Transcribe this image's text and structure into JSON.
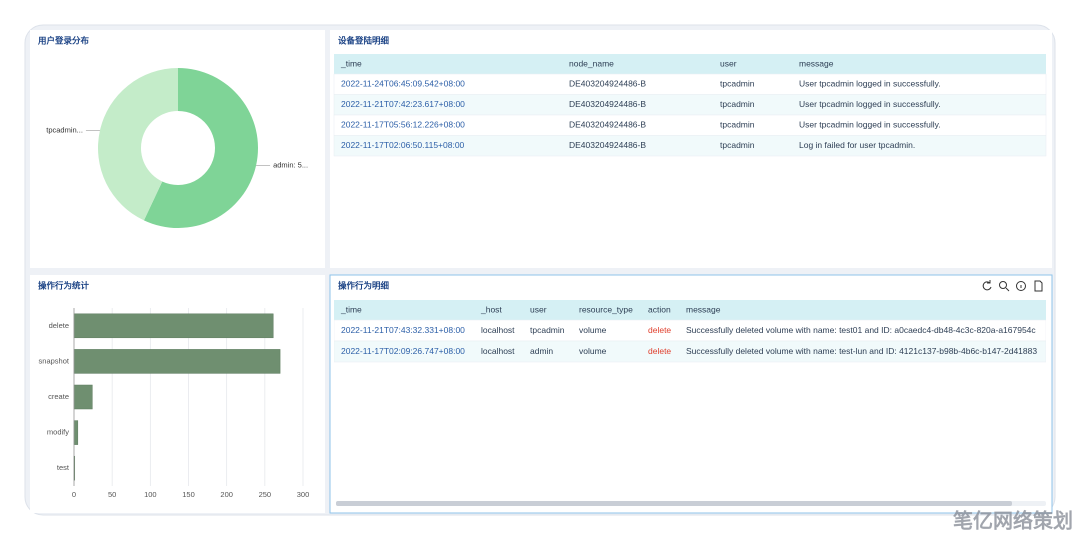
{
  "chart_data": [
    {
      "type": "pie",
      "title": "用户登录分布",
      "categories": [
        "admin: 5...",
        "tpcadmin..."
      ],
      "values": [
        57,
        43
      ],
      "colors": [
        "#7fd497",
        "#c4ecc9"
      ]
    },
    {
      "type": "bar",
      "title": "操作行为统计",
      "categories": [
        "delete",
        "snapshot",
        "create",
        "modify",
        "test"
      ],
      "values": [
        261,
        270,
        24,
        5,
        1
      ],
      "color": "#6f8f70",
      "xlim": [
        0,
        300
      ],
      "xticks": [
        0,
        50,
        100,
        150,
        200,
        250,
        300
      ],
      "grid": true
    }
  ],
  "tables": [
    {
      "title": "设备登陆明细",
      "columns": [
        "_time",
        "node_name",
        "user",
        "message"
      ],
      "rows": [
        [
          "2022-11-24T06:45:09.542+08:00",
          "DE403204924486-B",
          "tpcadmin",
          "User tpcadmin logged in successfully."
        ],
        [
          "2022-11-21T07:42:23.617+08:00",
          "DE403204924486-B",
          "tpcadmin",
          "User tpcadmin logged in successfully."
        ],
        [
          "2022-11-17T05:56:12.226+08:00",
          "DE403204924486-B",
          "tpcadmin",
          "User tpcadmin logged in successfully."
        ],
        [
          "2022-11-17T02:06:50.115+08:00",
          "DE403204924486-B",
          "tpcadmin",
          "Log in failed for user tpcadmin."
        ]
      ]
    },
    {
      "title": "操作行为明细",
      "columns": [
        "_time",
        "_host",
        "user",
        "resource_type",
        "action",
        "message"
      ],
      "rows": [
        [
          "2022-11-21T07:43:32.331+08:00",
          "localhost",
          "tpcadmin",
          "volume",
          "delete",
          "Successfully deleted volume with name: test01 and ID: a0caedc4-db48-4c3c-820a-a167954c"
        ],
        [
          "2022-11-17T02:09:26.747+08:00",
          "localhost",
          "admin",
          "volume",
          "delete",
          "Successfully deleted volume with name: test-lun and ID: 4121c137-b98b-4b6c-b147-2d41883"
        ]
      ]
    }
  ],
  "watermark": "笔亿网络策划"
}
